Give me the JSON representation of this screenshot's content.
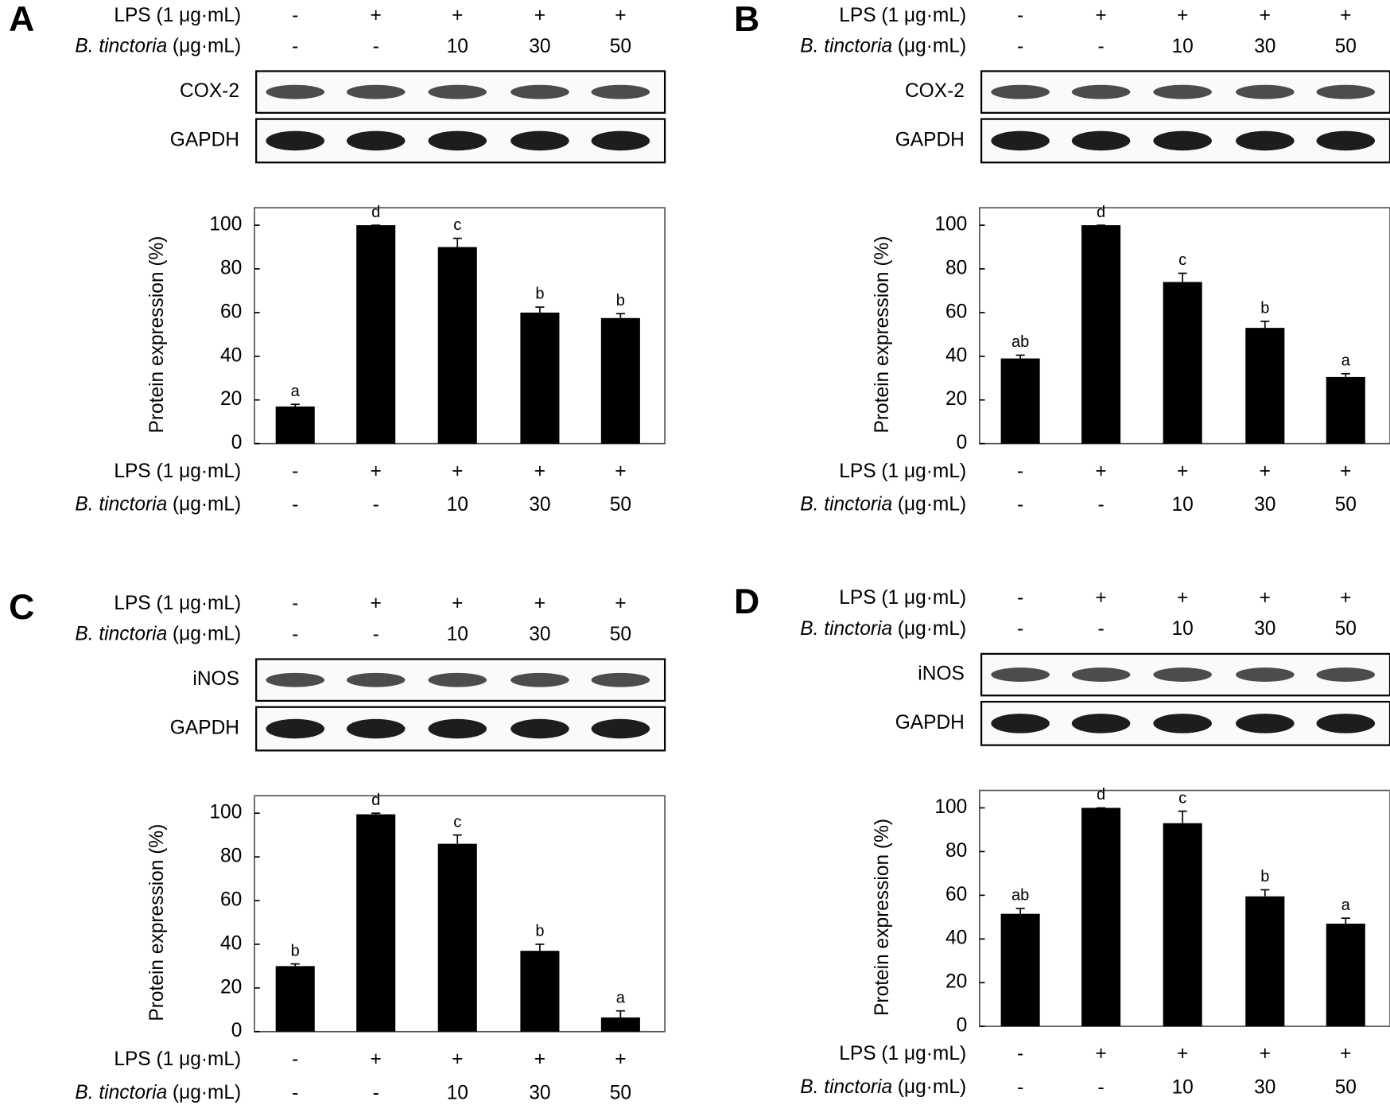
{
  "chart_data": [
    {
      "type": "bar",
      "panel": "A",
      "y_label": "Protein expression (%)",
      "lps_label": "LPS (1 μg·mL)",
      "drug_label": "B. tinctoria",
      "drug_unit": "(μg·mL)",
      "lps": [
        "-",
        "+",
        "+",
        "+",
        "+"
      ],
      "dose": [
        "-",
        "-",
        "10",
        "30",
        "50"
      ],
      "blot_labels": [
        "COX-2",
        "GAPDH"
      ],
      "values": [
        17,
        100,
        90,
        60,
        57.5
      ],
      "errors": [
        1,
        0,
        4,
        2.5,
        2
      ],
      "significance": [
        "a",
        "d",
        "c",
        "b",
        "b"
      ],
      "color": "#000000",
      "ylim": [
        0,
        108
      ],
      "yticks": [
        0,
        20,
        40,
        60,
        80,
        100
      ]
    },
    {
      "type": "bar",
      "panel": "B",
      "y_label": "Protein expression (%)",
      "lps_label": "LPS (1 μg·mL)",
      "drug_label": "B. tinctoria",
      "drug_unit": "(μg·mL)",
      "lps": [
        "-",
        "+",
        "+",
        "+",
        "+"
      ],
      "dose": [
        "-",
        "-",
        "10",
        "30",
        "50"
      ],
      "blot_labels": [
        "COX-2",
        "GAPDH"
      ],
      "values": [
        39,
        100,
        74,
        53,
        30.5
      ],
      "errors": [
        1.5,
        0,
        4,
        3,
        1.5
      ],
      "significance": [
        "ab",
        "d",
        "c",
        "b",
        "a"
      ],
      "color": "#000000",
      "ylim": [
        0,
        108
      ],
      "yticks": [
        0,
        20,
        40,
        60,
        80,
        100
      ]
    },
    {
      "type": "bar",
      "panel": "C",
      "y_label": "Protein expression (%)",
      "lps_label": "LPS (1 μg·mL)",
      "drug_label": "B. tinctoria",
      "drug_unit": "(μg·mL)",
      "lps": [
        "-",
        "+",
        "+",
        "+",
        "+"
      ],
      "dose": [
        "-",
        "-",
        "10",
        "30",
        "50"
      ],
      "blot_labels": [
        "iNOS",
        "GAPDH"
      ],
      "values": [
        30,
        99.5,
        86,
        37,
        6.5
      ],
      "errors": [
        1,
        0.5,
        4,
        3,
        3
      ],
      "significance": [
        "b",
        "d",
        "c",
        "b",
        "a"
      ],
      "color": "#000000",
      "ylim": [
        0,
        108
      ],
      "yticks": [
        0,
        20,
        40,
        60,
        80,
        100
      ]
    },
    {
      "type": "bar",
      "panel": "D",
      "y_label": "Protein expression (%)",
      "lps_label": "LPS (1 μg·mL)",
      "drug_label": "B. tinctoria",
      "drug_unit": "(μg·mL)",
      "lps": [
        "-",
        "+",
        "+",
        "+",
        "+"
      ],
      "dose": [
        "-",
        "-",
        "10",
        "30",
        "50"
      ],
      "blot_labels": [
        "iNOS",
        "GAPDH"
      ],
      "values": [
        51.5,
        100,
        93,
        59.5,
        47
      ],
      "errors": [
        2.5,
        0,
        5.5,
        3,
        2.5
      ],
      "significance": [
        "ab",
        "d",
        "c",
        "b",
        "a"
      ],
      "color": "#000000",
      "ylim": [
        0,
        108
      ],
      "yticks": [
        0,
        20,
        40,
        60,
        80,
        100
      ]
    }
  ]
}
